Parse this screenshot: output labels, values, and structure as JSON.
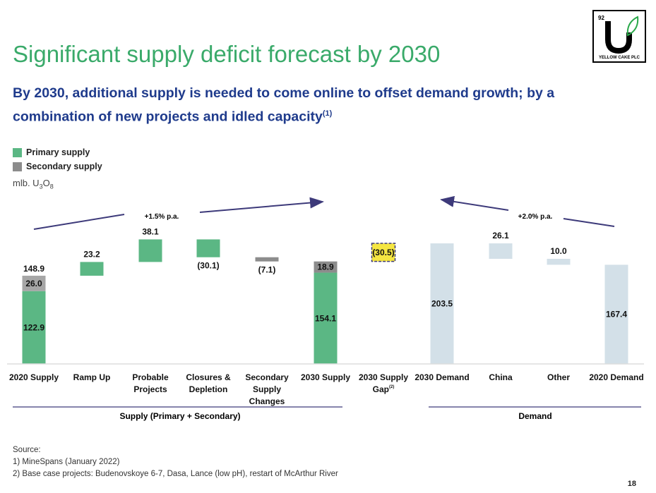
{
  "title": "Significant supply deficit forecast by 2030",
  "subtitle": "By 2030, additional supply is needed to come online to offset demand growth; by a combination of new projects and idled capacity",
  "subtitle_sup": "(1)",
  "logo": {
    "number": "92",
    "letter": "U",
    "text": "YELLOW CAKE PLC"
  },
  "colors": {
    "primary": "#5bb784",
    "secondary": "#8c8c8c",
    "secondary_light": "#a6a6a6",
    "demand": "#d3e0e8",
    "gap": "#f5e642",
    "arrow": "#3d3a7a"
  },
  "chart_data": {
    "type": "bar",
    "subtype": "waterfall",
    "unit_label": "mlb. U3O8",
    "legend": [
      {
        "name": "Primary supply",
        "color": "#5bb784"
      },
      {
        "name": "Secondary supply",
        "color": "#8c8c8c"
      }
    ],
    "legend_position": "top-left",
    "categories": [
      "2020 Supply",
      "Ramp Up",
      "Probable Projects",
      "Closures & Depletion",
      "Secondary Supply Changes",
      "2030 Supply",
      "2030 Supply Gap",
      "2030 Demand",
      "China",
      "Other",
      "2020 Demand"
    ],
    "gap_sup": "(2)",
    "bars": [
      {
        "segments": [
          {
            "from": 0,
            "to": 122.9,
            "series": "primary",
            "label": "122.9"
          },
          {
            "from": 122.9,
            "to": 148.9,
            "series": "secondary",
            "label": "26.0"
          }
        ],
        "total_label": "148.9"
      },
      {
        "segments": [
          {
            "from": 148.9,
            "to": 172.1,
            "series": "primary"
          }
        ],
        "label": "23.2",
        "label_pos": "above"
      },
      {
        "segments": [
          {
            "from": 172.1,
            "to": 210.2,
            "series": "primary"
          }
        ],
        "label": "38.1",
        "label_pos": "above"
      },
      {
        "segments": [
          {
            "from": 180.1,
            "to": 210.2,
            "series": "primary"
          }
        ],
        "label": "(30.1)",
        "label_pos": "below"
      },
      {
        "segments": [
          {
            "from": 173.0,
            "to": 180.1,
            "series": "secondary"
          }
        ],
        "label": "(7.1)",
        "label_pos": "below"
      },
      {
        "segments": [
          {
            "from": 0,
            "to": 154.1,
            "series": "primary",
            "label": "154.1"
          },
          {
            "from": 154.1,
            "to": 173.0,
            "series": "secondary",
            "label": "18.9"
          }
        ]
      },
      {
        "segments": [
          {
            "from": 173.0,
            "to": 203.5,
            "series": "gap",
            "label": "(30.5)"
          }
        ]
      },
      {
        "segments": [
          {
            "from": 0,
            "to": 203.5,
            "series": "demand",
            "label": "203.5"
          }
        ]
      },
      {
        "segments": [
          {
            "from": 177.4,
            "to": 203.5,
            "series": "demand"
          }
        ],
        "label": "26.1",
        "label_pos": "above"
      },
      {
        "segments": [
          {
            "from": 167.4,
            "to": 177.4,
            "series": "demand"
          }
        ],
        "label": "10.0",
        "label_pos": "above"
      },
      {
        "segments": [
          {
            "from": 0,
            "to": 167.4,
            "series": "demand",
            "label": "167.4"
          }
        ]
      }
    ],
    "annotations": [
      "+1.5% p.a.",
      "+2.0% p.a."
    ],
    "groups": [
      "Supply (Primary + Secondary)",
      "Demand"
    ],
    "ylim": [
      0,
      210.2
    ],
    "grid": false
  },
  "source": {
    "heading": "Source:",
    "notes": [
      "1)  MineSpans (January 2022)",
      "2)  Base case projects: Budenovskoye 6-7, Dasa, Lance (low pH), restart of McArthur River"
    ]
  },
  "page_number": "18"
}
